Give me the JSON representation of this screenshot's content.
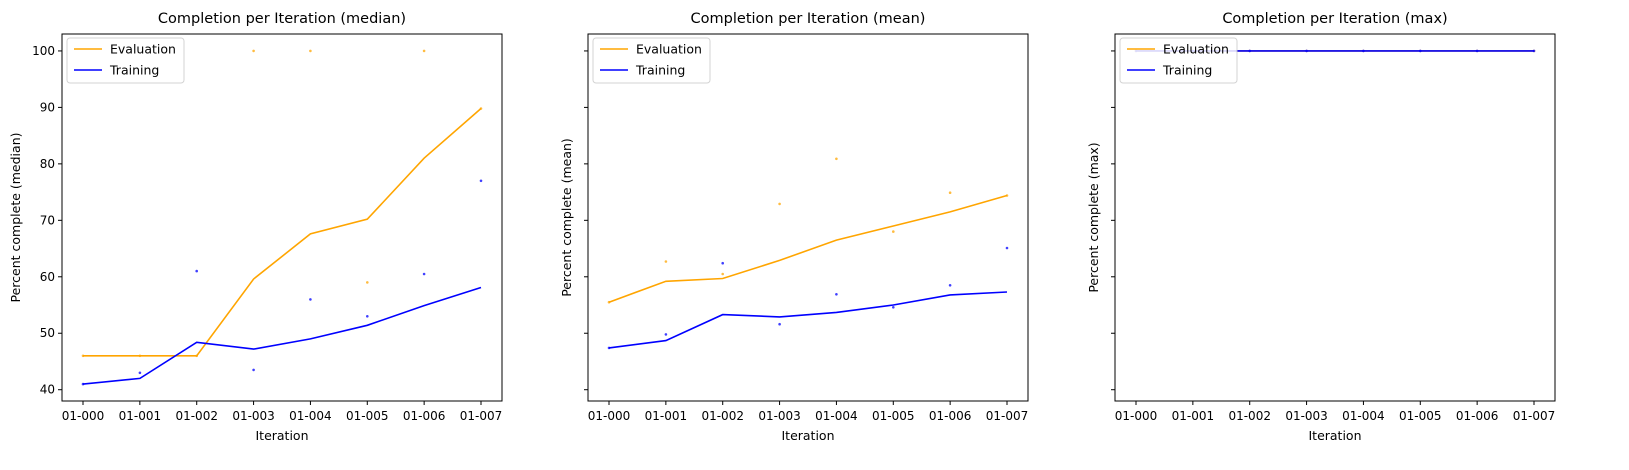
{
  "colors": {
    "evaluation": "#FFA500",
    "training": "#0000FF"
  },
  "chart_data": [
    {
      "type": "line",
      "title": "Completion per Iteration (median)",
      "xlabel": "Iteration",
      "ylabel": "Percent complete (median)",
      "ylim": [
        38,
        103
      ],
      "yticks": [
        40,
        50,
        60,
        70,
        80,
        90,
        100
      ],
      "yticklabels": [
        "40",
        "50",
        "60",
        "70",
        "80",
        "90",
        "100"
      ],
      "categories": [
        "01-000",
        "01-001",
        "01-002",
        "01-003",
        "01-004",
        "01-005",
        "01-006",
        "01-007"
      ],
      "legend": "top-left",
      "series": [
        {
          "name": "Evaluation",
          "color": "#FFA500",
          "line": [
            46,
            46,
            46,
            59.6,
            67.6,
            70.2,
            81,
            89.8
          ],
          "points": [
            46,
            46,
            46,
            100,
            100,
            59,
            100,
            89.8
          ]
        },
        {
          "name": "Training",
          "color": "#0000FF",
          "line": [
            41,
            42,
            48.4,
            47.2,
            49,
            51.4,
            54.9,
            58.1
          ],
          "points": [
            41,
            43,
            61,
            43.5,
            56,
            53,
            60.5,
            77
          ]
        }
      ]
    },
    {
      "type": "line",
      "title": "Completion per Iteration (mean)",
      "xlabel": "Iteration",
      "ylabel": "Percent complete (mean)",
      "ylim": [
        38,
        103
      ],
      "yticks": [
        40,
        50,
        60,
        70,
        80,
        90,
        100
      ],
      "yticklabels": [],
      "categories": [
        "01-000",
        "01-001",
        "01-002",
        "01-003",
        "01-004",
        "01-005",
        "01-006",
        "01-007"
      ],
      "legend": "top-left",
      "series": [
        {
          "name": "Evaluation",
          "color": "#FFA500",
          "line": [
            55.5,
            59.2,
            59.7,
            62.9,
            66.5,
            69,
            71.5,
            74.4
          ],
          "points": [
            55.5,
            62.7,
            60.5,
            72.9,
            80.9,
            68,
            74.9,
            74.4
          ]
        },
        {
          "name": "Training",
          "color": "#0000FF",
          "line": [
            47.4,
            48.7,
            53.3,
            52.9,
            53.7,
            55,
            56.8,
            57.3
          ],
          "points": [
            47.4,
            49.8,
            62.4,
            51.6,
            56.9,
            54.6,
            58.5,
            65.1
          ]
        }
      ]
    },
    {
      "type": "line",
      "title": "Completion per Iteration (max)",
      "xlabel": "Iteration",
      "ylabel": "Percent complete (max)",
      "ylim": [
        38,
        103
      ],
      "yticks": [
        40,
        50,
        60,
        70,
        80,
        90,
        100
      ],
      "yticklabels": [],
      "categories": [
        "01-000",
        "01-001",
        "01-002",
        "01-003",
        "01-004",
        "01-005",
        "01-006",
        "01-007"
      ],
      "legend": "top-left",
      "series": [
        {
          "name": "Evaluation",
          "color": "#FFA500",
          "line": [
            100,
            100,
            100,
            100,
            100,
            100,
            100,
            100
          ],
          "points": [
            100,
            100,
            100,
            100,
            100,
            100,
            100,
            100
          ]
        },
        {
          "name": "Training",
          "color": "#0000FF",
          "line": [
            100,
            100,
            100,
            100,
            100,
            100,
            100,
            100
          ],
          "points": [
            100,
            100,
            100,
            100,
            100,
            100,
            100,
            100
          ]
        }
      ]
    }
  ]
}
